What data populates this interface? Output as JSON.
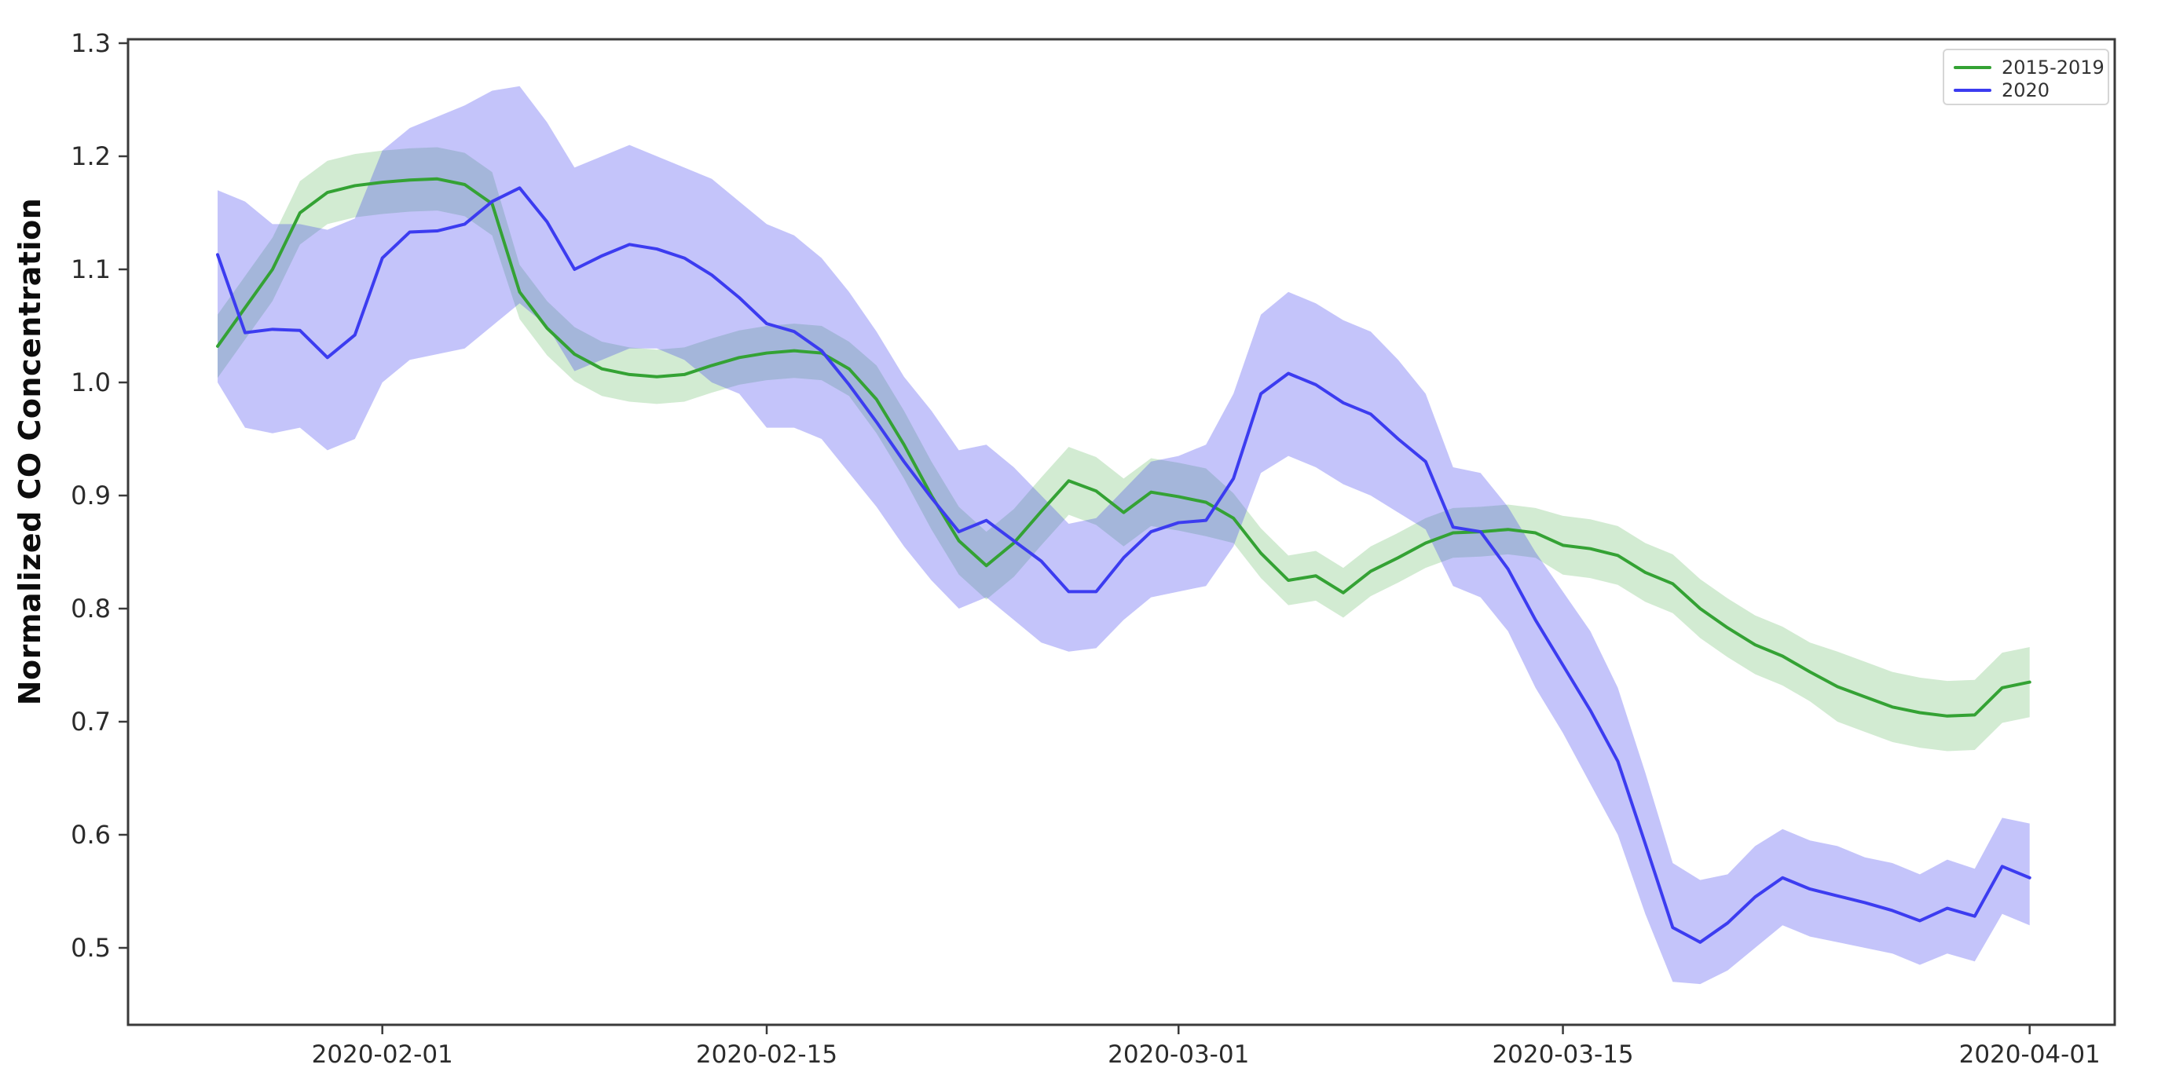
{
  "figure": {
    "background": "#ffffff"
  },
  "y_axis": {
    "label": "Normalized CO Concentration",
    "ticks": [
      "1.3",
      "1.2",
      "1.1",
      "1.0",
      "0.9",
      "0.8",
      "0.7",
      "0.6",
      "0.5"
    ],
    "tick_values": [
      1.3,
      1.2,
      1.1,
      1.0,
      0.9,
      0.8,
      0.7,
      0.6,
      0.5
    ]
  },
  "x_axis": {
    "tick_labels": [
      "2020-02-01",
      "2020-02-15",
      "2020-03-01",
      "2020-03-15",
      "2020-04-01"
    ],
    "tick_indices": [
      6,
      20,
      35,
      49,
      66
    ]
  },
  "legend": {
    "entries": [
      {
        "label": "2015-2019",
        "color": "#34a234"
      },
      {
        "label": "2020",
        "color": "#3c3cf0"
      }
    ],
    "position": "upper right"
  },
  "chart_data": {
    "type": "line",
    "title": "",
    "xlabel": "",
    "ylabel": "Normalized CO Concentration",
    "ylim": [
      0.432,
      1.3075
    ],
    "grid": false,
    "legend_position": "upper right",
    "x": [
      "2020-01-26",
      "2020-01-27",
      "2020-01-28",
      "2020-01-29",
      "2020-01-30",
      "2020-01-31",
      "2020-02-01",
      "2020-02-02",
      "2020-02-03",
      "2020-02-04",
      "2020-02-05",
      "2020-02-06",
      "2020-02-07",
      "2020-02-08",
      "2020-02-09",
      "2020-02-10",
      "2020-02-11",
      "2020-02-12",
      "2020-02-13",
      "2020-02-14",
      "2020-02-15",
      "2020-02-16",
      "2020-02-17",
      "2020-02-18",
      "2020-02-19",
      "2020-02-20",
      "2020-02-21",
      "2020-02-22",
      "2020-02-23",
      "2020-02-24",
      "2020-02-25",
      "2020-02-26",
      "2020-02-27",
      "2020-02-28",
      "2020-02-29",
      "2020-03-01",
      "2020-03-02",
      "2020-03-03",
      "2020-03-04",
      "2020-03-05",
      "2020-03-06",
      "2020-03-07",
      "2020-03-08",
      "2020-03-09",
      "2020-03-10",
      "2020-03-11",
      "2020-03-12",
      "2020-03-13",
      "2020-03-14",
      "2020-03-15",
      "2020-03-16",
      "2020-03-17",
      "2020-03-18",
      "2020-03-19",
      "2020-03-20",
      "2020-03-21",
      "2020-03-22",
      "2020-03-23",
      "2020-03-24",
      "2020-03-25",
      "2020-03-26",
      "2020-03-27",
      "2020-03-28",
      "2020-03-29",
      "2020-03-30",
      "2020-03-31",
      "2020-04-01"
    ],
    "series": [
      {
        "name": "2015-2019",
        "color": "#34a234",
        "band_opacity": 0.22,
        "values": [
          1.032,
          1.066,
          1.1,
          1.15,
          1.168,
          1.174,
          1.177,
          1.179,
          1.18,
          1.175,
          1.158,
          1.08,
          1.048,
          1.025,
          1.012,
          1.007,
          1.005,
          1.007,
          1.015,
          1.022,
          1.026,
          1.028,
          1.026,
          1.012,
          0.985,
          0.945,
          0.9,
          0.86,
          0.838,
          0.858,
          0.886,
          0.913,
          0.904,
          0.885,
          0.903,
          0.899,
          0.894,
          0.88,
          0.849,
          0.825,
          0.829,
          0.814,
          0.833,
          0.845,
          0.858,
          0.867,
          0.868,
          0.87,
          0.867,
          0.856,
          0.853,
          0.847,
          0.832,
          0.822,
          0.8,
          0.783,
          0.768,
          0.758,
          0.744,
          0.731,
          0.722,
          0.713,
          0.708,
          0.705,
          0.706,
          0.73,
          0.735
        ],
        "band_lo": [
          1.004,
          1.038,
          1.072,
          1.122,
          1.14,
          1.146,
          1.149,
          1.151,
          1.152,
          1.147,
          1.13,
          1.056,
          1.024,
          1.001,
          0.988,
          0.983,
          0.981,
          0.983,
          0.991,
          0.998,
          1.002,
          1.004,
          1.002,
          0.988,
          0.955,
          0.915,
          0.87,
          0.83,
          0.808,
          0.828,
          0.856,
          0.883,
          0.874,
          0.855,
          0.873,
          0.869,
          0.864,
          0.858,
          0.827,
          0.803,
          0.807,
          0.792,
          0.811,
          0.823,
          0.836,
          0.845,
          0.846,
          0.848,
          0.845,
          0.83,
          0.827,
          0.821,
          0.806,
          0.796,
          0.774,
          0.757,
          0.742,
          0.732,
          0.718,
          0.7,
          0.691,
          0.682,
          0.677,
          0.674,
          0.675,
          0.699,
          0.704
        ],
        "band_hi": [
          1.06,
          1.094,
          1.128,
          1.178,
          1.196,
          1.202,
          1.205,
          1.207,
          1.208,
          1.203,
          1.186,
          1.104,
          1.072,
          1.049,
          1.036,
          1.031,
          1.029,
          1.031,
          1.039,
          1.046,
          1.05,
          1.052,
          1.05,
          1.036,
          1.015,
          0.975,
          0.93,
          0.89,
          0.868,
          0.888,
          0.916,
          0.943,
          0.934,
          0.915,
          0.933,
          0.929,
          0.924,
          0.902,
          0.871,
          0.847,
          0.851,
          0.836,
          0.855,
          0.867,
          0.88,
          0.889,
          0.89,
          0.892,
          0.889,
          0.882,
          0.879,
          0.873,
          0.858,
          0.848,
          0.826,
          0.809,
          0.794,
          0.784,
          0.77,
          0.762,
          0.753,
          0.744,
          0.739,
          0.736,
          0.737,
          0.761,
          0.766
        ]
      },
      {
        "name": "2020",
        "color": "#3c3cf0",
        "band_opacity": 0.3,
        "values": [
          1.113,
          1.044,
          1.047,
          1.046,
          1.022,
          1.042,
          1.11,
          1.133,
          1.134,
          1.14,
          1.16,
          1.172,
          1.142,
          1.1,
          1.112,
          1.122,
          1.118,
          1.11,
          1.095,
          1.075,
          1.052,
          1.045,
          1.028,
          0.998,
          0.965,
          0.93,
          0.898,
          0.868,
          0.878,
          0.86,
          0.842,
          0.815,
          0.815,
          0.845,
          0.868,
          0.876,
          0.878,
          0.915,
          0.99,
          1.008,
          0.998,
          0.982,
          0.972,
          0.95,
          0.93,
          0.872,
          0.868,
          0.835,
          0.79,
          0.75,
          0.71,
          0.665,
          0.592,
          0.518,
          0.505,
          0.522,
          0.545,
          0.562,
          0.552,
          0.546,
          0.54,
          0.533,
          0.524,
          0.535,
          0.528,
          0.572,
          0.562
        ],
        "band_lo": [
          1.0,
          0.96,
          0.955,
          0.96,
          0.94,
          0.95,
          1.0,
          1.02,
          1.025,
          1.03,
          1.05,
          1.07,
          1.05,
          1.01,
          1.02,
          1.03,
          1.03,
          1.02,
          1.0,
          0.99,
          0.96,
          0.96,
          0.95,
          0.92,
          0.89,
          0.855,
          0.825,
          0.8,
          0.81,
          0.79,
          0.77,
          0.762,
          0.765,
          0.79,
          0.81,
          0.815,
          0.82,
          0.855,
          0.92,
          0.935,
          0.925,
          0.91,
          0.9,
          0.885,
          0.87,
          0.82,
          0.81,
          0.78,
          0.73,
          0.69,
          0.645,
          0.6,
          0.53,
          0.47,
          0.468,
          0.48,
          0.5,
          0.52,
          0.51,
          0.505,
          0.5,
          0.495,
          0.485,
          0.495,
          0.488,
          0.53,
          0.52
        ],
        "band_hi": [
          1.17,
          1.16,
          1.14,
          1.14,
          1.135,
          1.145,
          1.205,
          1.225,
          1.235,
          1.245,
          1.258,
          1.262,
          1.23,
          1.19,
          1.2,
          1.21,
          1.2,
          1.19,
          1.18,
          1.16,
          1.14,
          1.13,
          1.11,
          1.08,
          1.045,
          1.005,
          0.975,
          0.94,
          0.945,
          0.925,
          0.9,
          0.875,
          0.88,
          0.905,
          0.93,
          0.935,
          0.945,
          0.99,
          1.06,
          1.08,
          1.07,
          1.055,
          1.045,
          1.02,
          0.99,
          0.925,
          0.92,
          0.89,
          0.85,
          0.815,
          0.78,
          0.73,
          0.655,
          0.575,
          0.56,
          0.565,
          0.59,
          0.605,
          0.595,
          0.59,
          0.58,
          0.575,
          0.565,
          0.578,
          0.57,
          0.615,
          0.61
        ]
      }
    ]
  }
}
